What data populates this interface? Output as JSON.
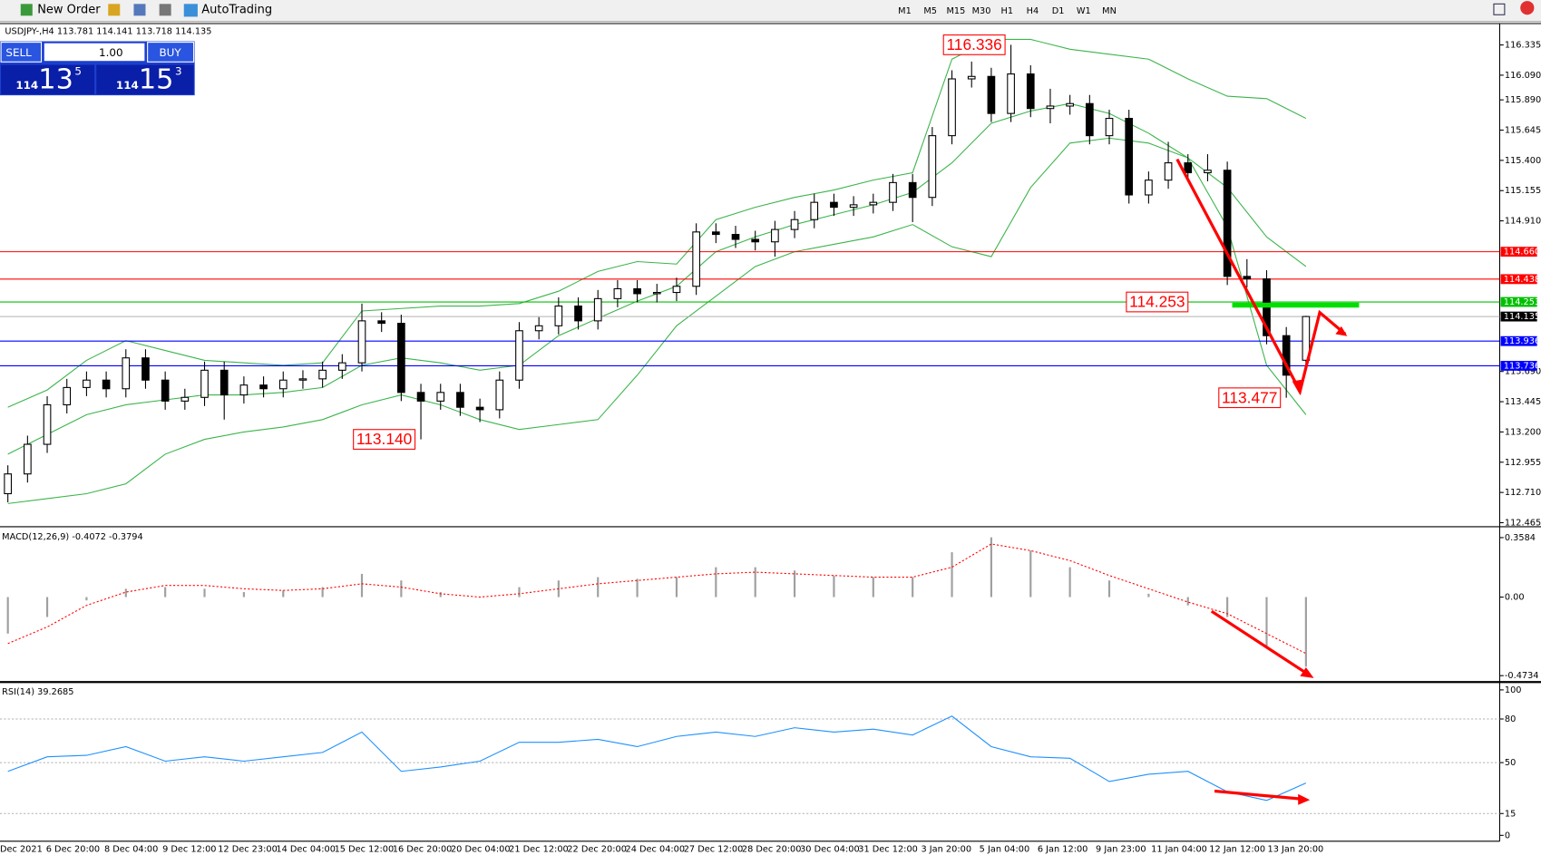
{
  "toolbar": {
    "new_order": "New Order",
    "autotrading": "AutoTrading",
    "timeframes": [
      "M1",
      "M5",
      "M15",
      "M30",
      "H1",
      "H4",
      "D1",
      "W1",
      "MN"
    ]
  },
  "trade_panel": {
    "sell": "SELL",
    "buy": "BUY",
    "lot": "1.00",
    "sell_big": "114",
    "sell_main": "13",
    "sell_sup": "5",
    "buy_big": "114",
    "buy_main": "15",
    "buy_sup": "3"
  },
  "chart_data": [
    {
      "type": "candlestick",
      "title": "USDJPY-,H4 113.781 114.141 113.718 114.135",
      "ylim": [
        112.44,
        116.5
      ],
      "yticks": [
        112.465,
        {
          "value": 112.71,
          "label": "112.710"
        },
        112.955,
        {
          "value": 113.2,
          "label": "113.200"
        },
        113.445,
        {
          "value": 113.69,
          "label": "113.690"
        },
        {
          "value": 115.155,
          "label": "115.155"
        },
        {
          "value": 114.91,
          "label": "114.910"
        },
        {
          "value": 115.4,
          "label": "115.400"
        },
        115.645,
        {
          "value": 115.89,
          "label": "115.890"
        },
        {
          "value": 116.09,
          "label": "116.090"
        },
        116.335
      ],
      "ohlc": [
        [
          112.7,
          112.93,
          112.63,
          112.86
        ],
        [
          112.86,
          113.17,
          112.79,
          113.1
        ],
        [
          113.1,
          113.49,
          113.03,
          113.42
        ],
        [
          113.42,
          113.63,
          113.35,
          113.56
        ],
        [
          113.56,
          113.69,
          113.49,
          113.62
        ],
        [
          113.62,
          113.69,
          113.48,
          113.55
        ],
        [
          113.55,
          113.87,
          113.48,
          113.8
        ],
        [
          113.8,
          113.87,
          113.55,
          113.62
        ],
        [
          113.62,
          113.69,
          113.38,
          113.45
        ],
        [
          113.45,
          113.55,
          113.38,
          113.48
        ],
        [
          113.48,
          113.77,
          113.41,
          113.7
        ],
        [
          113.7,
          113.77,
          113.3,
          113.5
        ],
        [
          113.5,
          113.65,
          113.43,
          113.58
        ],
        [
          113.58,
          113.65,
          113.48,
          113.55
        ],
        [
          113.55,
          113.69,
          113.48,
          113.62
        ],
        [
          113.62,
          113.7,
          113.55,
          113.63
        ],
        [
          113.63,
          113.77,
          113.56,
          113.7
        ],
        [
          113.7,
          113.83,
          113.63,
          113.76
        ],
        [
          113.76,
          114.24,
          113.69,
          114.1
        ],
        [
          114.1,
          114.17,
          114.01,
          114.08
        ],
        [
          114.08,
          114.15,
          113.45,
          113.52
        ],
        [
          113.52,
          113.59,
          113.14,
          113.45
        ],
        [
          113.45,
          113.59,
          113.38,
          113.52
        ],
        [
          113.52,
          113.59,
          113.33,
          113.4
        ],
        [
          113.4,
          113.47,
          113.28,
          113.38
        ],
        [
          113.38,
          113.69,
          113.31,
          113.62
        ],
        [
          113.62,
          114.09,
          113.55,
          114.02
        ],
        [
          114.02,
          114.13,
          113.95,
          114.06
        ],
        [
          114.06,
          114.29,
          113.99,
          114.22
        ],
        [
          114.22,
          114.29,
          114.03,
          114.1
        ],
        [
          114.1,
          114.35,
          114.03,
          114.28
        ],
        [
          114.28,
          114.43,
          114.21,
          114.36
        ],
        [
          114.36,
          114.43,
          114.25,
          114.32
        ],
        [
          114.32,
          114.4,
          114.25,
          114.33
        ],
        [
          114.33,
          114.45,
          114.26,
          114.38
        ],
        [
          114.38,
          114.89,
          114.31,
          114.82
        ],
        [
          114.82,
          114.89,
          114.73,
          114.8
        ],
        [
          114.8,
          114.87,
          114.69,
          114.76
        ],
        [
          114.76,
          114.83,
          114.67,
          114.74
        ],
        [
          114.74,
          114.91,
          114.62,
          114.84
        ],
        [
          114.84,
          114.99,
          114.77,
          114.92
        ],
        [
          114.92,
          115.13,
          114.85,
          115.06
        ],
        [
          115.06,
          115.13,
          114.95,
          115.02
        ],
        [
          115.02,
          115.11,
          114.95,
          115.04
        ],
        [
          115.04,
          115.13,
          114.97,
          115.06
        ],
        [
          115.06,
          115.29,
          114.99,
          115.22
        ],
        [
          115.22,
          115.29,
          114.9,
          115.1
        ],
        [
          115.1,
          115.67,
          115.03,
          115.6
        ],
        [
          115.6,
          116.13,
          115.53,
          116.06
        ],
        [
          116.06,
          116.2,
          115.99,
          116.08
        ],
        [
          116.08,
          116.15,
          115.71,
          115.78
        ],
        [
          115.78,
          116.336,
          115.71,
          116.1
        ],
        [
          116.1,
          116.17,
          115.75,
          115.82
        ],
        [
          115.82,
          115.98,
          115.7,
          115.84
        ],
        [
          115.84,
          115.93,
          115.77,
          115.86
        ],
        [
          115.86,
          115.93,
          115.53,
          115.6
        ],
        [
          115.6,
          115.81,
          115.53,
          115.74
        ],
        [
          115.74,
          115.81,
          115.05,
          115.12
        ],
        [
          115.12,
          115.31,
          115.05,
          115.24
        ],
        [
          115.24,
          115.55,
          115.17,
          115.38
        ],
        [
          115.38,
          115.45,
          115.23,
          115.3
        ],
        [
          115.3,
          115.45,
          115.23,
          115.32
        ],
        [
          115.32,
          115.39,
          114.39,
          114.46
        ],
        [
          114.46,
          114.6,
          114.37,
          114.44
        ],
        [
          114.44,
          114.51,
          113.91,
          113.98
        ],
        [
          113.98,
          114.05,
          113.477,
          113.66
        ],
        [
          113.781,
          114.141,
          113.718,
          114.135
        ]
      ],
      "bands": {
        "x": [
          0,
          2,
          4,
          6,
          8,
          10,
          12,
          14,
          16,
          18,
          20,
          22,
          24,
          26,
          28,
          30,
          32,
          34,
          36,
          38,
          40,
          42,
          44,
          46,
          48,
          50,
          52,
          54,
          56,
          58,
          60,
          62,
          64,
          66
        ],
        "color": "#3cb44b",
        "upper": [
          113.4,
          113.54,
          113.78,
          113.94,
          113.86,
          113.78,
          113.76,
          113.74,
          113.76,
          114.18,
          114.2,
          114.22,
          114.22,
          114.24,
          114.34,
          114.5,
          114.58,
          114.56,
          114.92,
          115.02,
          115.1,
          115.16,
          115.24,
          115.3,
          116.22,
          116.38,
          116.38,
          116.3,
          116.26,
          116.22,
          116.06,
          115.92,
          115.9,
          115.74
        ],
        "middle": [
          113.02,
          113.18,
          113.34,
          113.42,
          113.46,
          113.5,
          113.5,
          113.52,
          113.56,
          113.74,
          113.8,
          113.76,
          113.7,
          113.74,
          113.98,
          114.12,
          114.26,
          114.38,
          114.66,
          114.78,
          114.88,
          114.96,
          115.04,
          115.14,
          115.38,
          115.7,
          115.8,
          115.86,
          115.78,
          115.62,
          115.42,
          115.18,
          114.78,
          114.54
        ],
        "lower": [
          112.62,
          112.66,
          112.7,
          112.78,
          113.02,
          113.14,
          113.2,
          113.24,
          113.3,
          113.42,
          113.5,
          113.42,
          113.3,
          113.22,
          113.26,
          113.3,
          113.66,
          114.06,
          114.3,
          114.54,
          114.66,
          114.72,
          114.78,
          114.88,
          114.7,
          114.62,
          115.18,
          115.54,
          115.58,
          115.54,
          115.42,
          114.86,
          113.74,
          113.34
        ]
      },
      "levels": [
        {
          "value": 114.66,
          "label": "114.660",
          "color": "#ff0000"
        },
        {
          "value": 114.438,
          "label": "114.438",
          "color": "#ff0000"
        },
        {
          "value": 114.253,
          "label": "114.253",
          "color": "#00c000"
        },
        {
          "value": 114.135,
          "label": "114.135",
          "color": "#000000"
        },
        {
          "value": 113.936,
          "label": "113.936",
          "color": "#0000ff"
        },
        {
          "value": 113.736,
          "label": "113.736",
          "color": "#0000ff"
        }
      ],
      "annotations": [
        {
          "value": 116.336,
          "label": "116.336"
        },
        {
          "value": 114.253,
          "label": "114.253"
        },
        {
          "value": 113.477,
          "label": "113.477"
        },
        {
          "value": 113.14,
          "label": "113.140"
        }
      ],
      "time_labels": [
        "Dec 2021",
        "6 Dec 20:00",
        "8 Dec 04:00",
        "9 Dec 12:00",
        "12 Dec 23:00",
        "14 Dec 04:00",
        "15 Dec 12:00",
        "16 Dec 20:00",
        "20 Dec 04:00",
        "21 Dec 12:00",
        "22 Dec 20:00",
        "24 Dec 04:00",
        "27 Dec 12:00",
        "28 Dec 20:00",
        "30 Dec 04:00",
        "31 Dec 12:00",
        "3 Jan 20:00",
        "5 Jan 04:00",
        "6 Jan 12:00",
        "9 Jan 23:00",
        "11 Jan 04:00",
        "12 Jan 12:00",
        "13 Jan 20:00"
      ]
    },
    {
      "type": "macd",
      "title": "MACD(12,26,9) -0.4072 -0.3794",
      "ylim": [
        -0.5,
        0.4
      ],
      "yticks": [
        -0.4734,
        {
          "value": 0,
          "label": "0.00"
        },
        0.3584
      ],
      "x": [
        0,
        2,
        4,
        6,
        8,
        10,
        12,
        14,
        16,
        18,
        20,
        22,
        24,
        26,
        28,
        30,
        32,
        34,
        36,
        38,
        40,
        42,
        44,
        46,
        48,
        50,
        52,
        54,
        56,
        58,
        60,
        62,
        64,
        66
      ],
      "histogram": [
        -0.22,
        -0.12,
        -0.02,
        0.05,
        0.06,
        0.05,
        0.03,
        0.04,
        0.06,
        0.14,
        0.1,
        0.03,
        0,
        0.06,
        0.1,
        0.12,
        0.11,
        0.12,
        0.18,
        0.18,
        0.16,
        0.13,
        0.12,
        0.12,
        0.27,
        0.36,
        0.28,
        0.18,
        0.1,
        0.02,
        -0.05,
        -0.12,
        -0.3,
        -0.42
      ],
      "histogram_color": "#a0a0a0",
      "signal": [
        -0.28,
        -0.18,
        -0.05,
        0.03,
        0.07,
        0.07,
        0.05,
        0.04,
        0.05,
        0.08,
        0.06,
        0.02,
        0,
        0.02,
        0.05,
        0.08,
        0.1,
        0.12,
        0.14,
        0.15,
        0.14,
        0.13,
        0.12,
        0.12,
        0.18,
        0.32,
        0.28,
        0.22,
        0.13,
        0.05,
        -0.03,
        -0.1,
        -0.22,
        -0.34
      ],
      "signal_color": "#ff0000"
    },
    {
      "type": "rsi",
      "title": "RSI(14) 39.2685",
      "ylim": [
        0,
        100
      ],
      "yticks": [
        0,
        15,
        50,
        80,
        100
      ],
      "levels": [
        15,
        50,
        80
      ],
      "x": [
        0,
        2,
        4,
        6,
        8,
        10,
        12,
        14,
        16,
        18,
        20,
        22,
        24,
        26,
        28,
        30,
        32,
        34,
        36,
        38,
        40,
        42,
        44,
        46,
        48,
        50,
        52,
        54,
        56,
        58,
        60,
        62,
        64,
        66
      ],
      "values": [
        44,
        54,
        55,
        61,
        51,
        54,
        51,
        54,
        57,
        71,
        44,
        47,
        51,
        64,
        64,
        66,
        61,
        68,
        71,
        68,
        74,
        71,
        73,
        69,
        82,
        61,
        54,
        53,
        37,
        42,
        44,
        30,
        24,
        36
      ],
      "color": "#1e90ff"
    }
  ]
}
